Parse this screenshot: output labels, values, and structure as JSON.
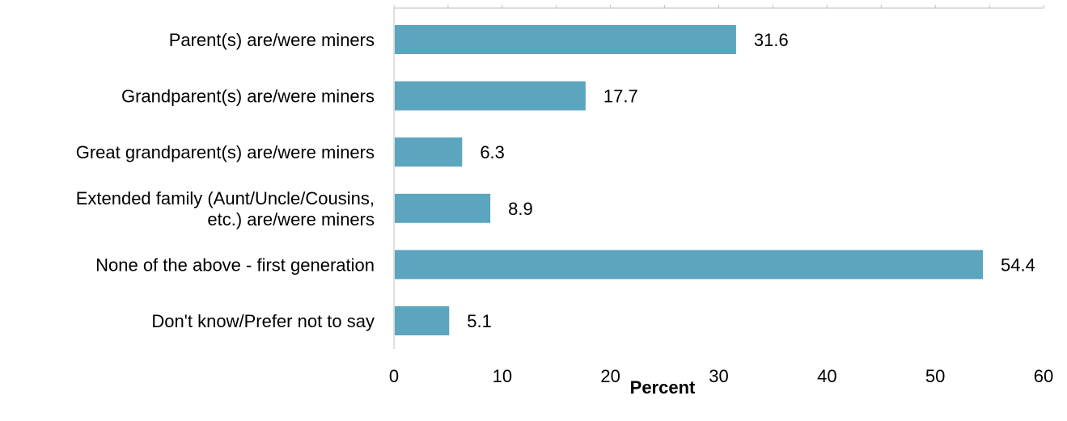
{
  "chart_data": {
    "type": "bar",
    "orientation": "horizontal",
    "categories": [
      [
        "Parent(s) are/were miners"
      ],
      [
        "Grandparent(s) are/were miners"
      ],
      [
        "Great grandparent(s) are/were miners"
      ],
      [
        "Extended family (Aunt/Uncle/Cousins,",
        "etc.) are/were miners"
      ],
      [
        "None of the above - first generation"
      ],
      [
        "Don't know/Prefer not to say"
      ]
    ],
    "values": [
      31.6,
      17.7,
      6.3,
      8.9,
      54.4,
      5.1
    ],
    "value_labels": [
      "31.6",
      "17.7",
      "6.3",
      "8.9",
      "54.4",
      "5.1"
    ],
    "xlabel": "Percent",
    "ylabel": "",
    "xlim": [
      0,
      60
    ],
    "xticks": [
      0,
      10,
      20,
      30,
      40,
      50,
      60
    ],
    "xtick_labels": [
      "0",
      "10",
      "20",
      "30",
      "40",
      "50",
      "60"
    ],
    "bar_color": "#5ba5be",
    "axis_color": "#bfbfbf",
    "grid": false,
    "legend": "none"
  }
}
